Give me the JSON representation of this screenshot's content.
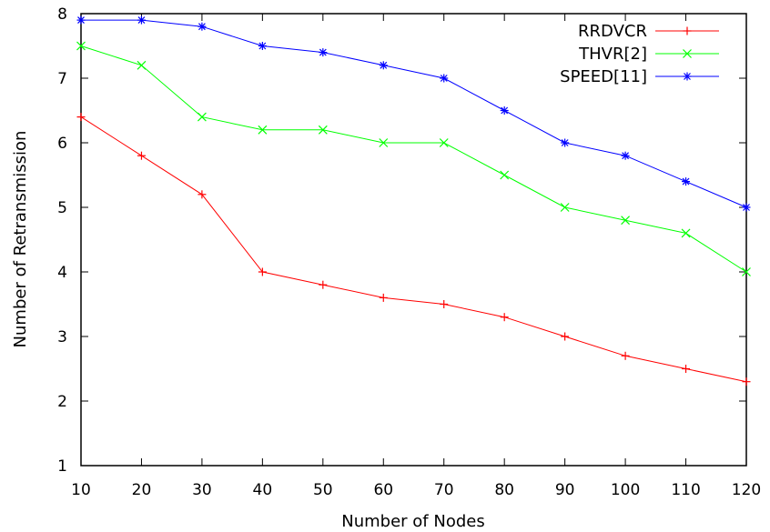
{
  "chart_data": {
    "type": "line",
    "title": "",
    "xlabel": "Number of Nodes",
    "ylabel": "Number of Retransmission",
    "xlim": [
      10,
      120
    ],
    "ylim": [
      1,
      8
    ],
    "x": [
      10,
      20,
      30,
      40,
      50,
      60,
      70,
      80,
      90,
      100,
      110,
      120
    ],
    "xticks": [
      "10",
      "20",
      "30",
      "40",
      "50",
      "60",
      "70",
      "80",
      "90",
      "100",
      "110",
      "120"
    ],
    "yticks": [
      "1",
      "2",
      "3",
      "4",
      "5",
      "6",
      "7",
      "8"
    ],
    "grid": false,
    "legend_position": "top-right",
    "series": [
      {
        "name": "RRDVCR",
        "color": "#ff0000",
        "marker": "plus",
        "values": [
          6.4,
          5.8,
          5.2,
          4.0,
          3.8,
          3.6,
          3.5,
          3.3,
          3.0,
          2.7,
          2.5,
          2.3
        ]
      },
      {
        "name": "THVR[2]",
        "color": "#00ff00",
        "marker": "cross",
        "values": [
          7.5,
          7.2,
          6.4,
          6.2,
          6.2,
          6.0,
          6.0,
          5.5,
          5.0,
          4.8,
          4.6,
          4.0
        ]
      },
      {
        "name": "SPEED[11]",
        "color": "#0000ff",
        "marker": "star",
        "values": [
          7.9,
          7.9,
          7.8,
          7.5,
          7.4,
          7.2,
          7.0,
          6.5,
          6.0,
          5.8,
          5.4,
          5.0
        ]
      }
    ]
  }
}
